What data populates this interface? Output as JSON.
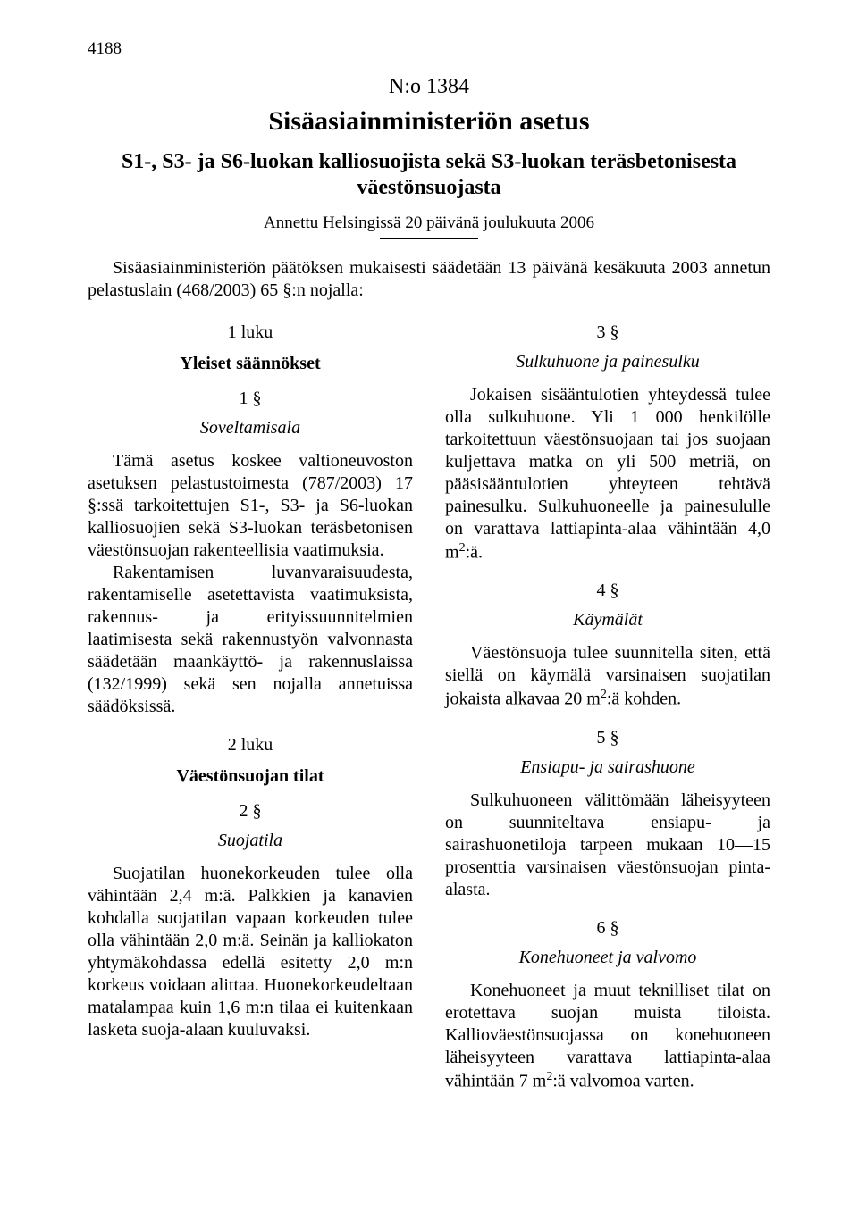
{
  "page_number": "4188",
  "doc_number": "N:o 1384",
  "title": "Sisäasiainministeriön asetus",
  "subtitle": "S1-, S3- ja S6-luokan kalliosuojista sekä S3-luokan teräsbetonisesta väestönsuojasta",
  "given": "Annettu Helsingissä 20 päivänä joulukuuta 2006",
  "intro": "Sisäasiainministeriön päätöksen mukaisesti säädetään 13 päivänä kesäkuuta 2003 annetun pelastuslain (468/2003) 65 §:n nojalla:",
  "left": {
    "luku1": "1 luku",
    "chap1": "Yleiset säännökset",
    "s1no": "1 §",
    "s1title": "Soveltamisala",
    "s1p1": "Tämä asetus koskee valtioneuvoston asetuksen pelastustoimesta (787/2003) 17 §:ssä tarkoitettujen S1-, S3- ja S6-luokan kalliosuojien sekä S3-luokan teräsbetonisen väestönsuojan rakenteellisia vaatimuksia.",
    "s1p2": "Rakentamisen luvanvaraisuudesta, rakentamiselle asetettavista vaatimuksista, rakennus- ja erityissuunnitelmien laatimisesta sekä rakennustyön valvonnasta säädetään maankäyttö- ja rakennuslaissa (132/1999) sekä sen nojalla annetuissa säädöksissä.",
    "luku2": "2 luku",
    "chap2": "Väestönsuojan tilat",
    "s2no": "2 §",
    "s2title": "Suojatila",
    "s2p1": "Suojatilan huonekorkeuden tulee olla vähintään 2,4 m:ä. Palkkien ja kanavien kohdalla suojatilan vapaan korkeuden tulee olla vähintään 2,0 m:ä. Seinän ja kalliokaton yhtymäkohdassa edellä esitetty 2,0 m:n korkeus voidaan alittaa. Huonekorkeudeltaan matalampaa kuin 1,6 m:n tilaa ei kuitenkaan lasketa suoja-alaan kuuluvaksi."
  },
  "right": {
    "s3no": "3 §",
    "s3title": "Sulkuhuone ja painesulku",
    "s3p1a": "Jokaisen sisääntulotien yhteydessä tulee olla sulkuhuone. Yli 1 000 henkilölle tarkoitettuun väestönsuojaan tai jos suojaan kuljettava matka on yli 500 metriä, on pääsisääntulotien yhteyteen tehtävä painesulku. Sulkuhuoneelle ja painesululle on varattava lattiapinta-alaa vähintään 4,0 m",
    "s3p1b": ":ä.",
    "s4no": "4 §",
    "s4title": "Käymälät",
    "s4p1a": "Väestönsuoja tulee suunnitella siten, että siellä on käymälä varsinaisen suojatilan jokaista alkavaa 20 m",
    "s4p1b": ":ä kohden.",
    "s5no": "5 §",
    "s5title": "Ensiapu- ja sairashuone",
    "s5p1": "Sulkuhuoneen välittömään läheisyyteen on suunniteltava ensiapu- ja sairashuonetiloja tarpeen mukaan 10—15 prosenttia varsinaisen väestönsuojan pinta-alasta.",
    "s6no": "6 §",
    "s6title": "Konehuoneet ja valvomo",
    "s6p1a": "Konehuoneet ja muut teknilliset tilat on erotettava suojan muista tiloista. Kallioväestönsuojassa on konehuoneen läheisyyteen varattava lattiapinta-alaa vähintään 7 m",
    "s6p1b": ":ä valvomoa varten."
  }
}
